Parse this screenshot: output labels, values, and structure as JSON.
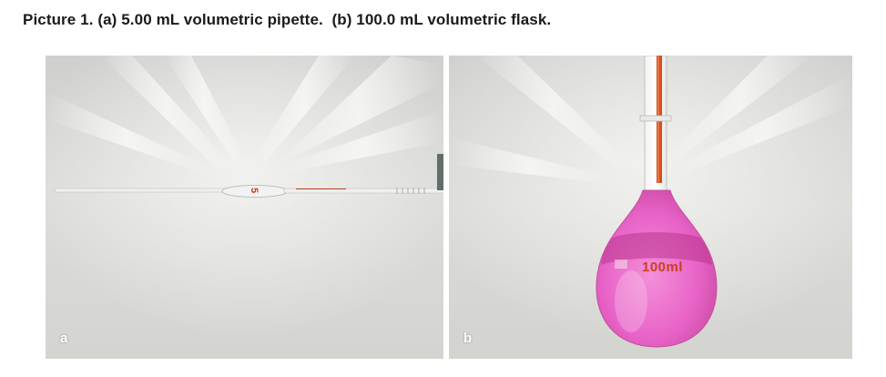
{
  "caption": "Picture 1. (a) 5.00 mL volumetric pipette.  (b) 100.0 mL volumetric flask.",
  "panels": [
    {
      "letter": "a",
      "subject": "volumetric pipette",
      "marking": "5"
    },
    {
      "letter": "b",
      "subject": "volumetric flask",
      "marking": "100ml"
    }
  ],
  "colors": {
    "liquid": "#e864c8",
    "graduation": "#c8401f",
    "background": "#d9d9d6"
  }
}
